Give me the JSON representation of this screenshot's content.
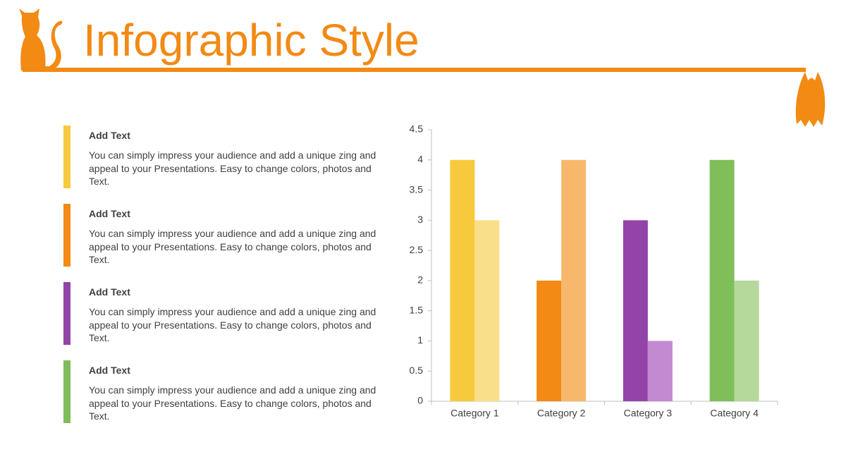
{
  "header": {
    "title": "Infographic Style"
  },
  "items": [
    {
      "heading": "Add Text",
      "body": "You can simply impress your audience and add a unique zing and appeal to your Presentations. Easy to change colors, photos and Text.",
      "color": "#f7c940"
    },
    {
      "heading": "Add Text",
      "body": "You can simply impress your audience and add a unique zing and appeal to your Presentations. Easy to change colors, photos and Text.",
      "color": "#f28a14"
    },
    {
      "heading": "Add Text",
      "body": "You can simply impress your audience and add a unique zing and appeal to your Presentations. Easy to change colors, photos and Text.",
      "color": "#9344a8"
    },
    {
      "heading": "Add Text",
      "body": "You can simply impress your audience and add a unique zing and appeal to your Presentations. Easy to change colors, photos and Text.",
      "color": "#7fbd5a"
    }
  ],
  "chart_data": {
    "type": "bar",
    "categories": [
      "Category 1",
      "Category 2",
      "Category 3",
      "Category 4"
    ],
    "series": [
      {
        "values": [
          4,
          2,
          3,
          4
        ],
        "colors": [
          "#f7ca3e",
          "#f28a14",
          "#9344a8",
          "#80be5a"
        ]
      },
      {
        "values": [
          3,
          4,
          1,
          2
        ],
        "colors": [
          "#fadf8a",
          "#f8b86c",
          "#c28ad0",
          "#b4d99b"
        ]
      }
    ],
    "ylim": [
      0,
      4.5
    ],
    "yticks": [
      0,
      0.5,
      1,
      1.5,
      2,
      2.5,
      3,
      3.5,
      4,
      4.5
    ],
    "grid": false
  }
}
